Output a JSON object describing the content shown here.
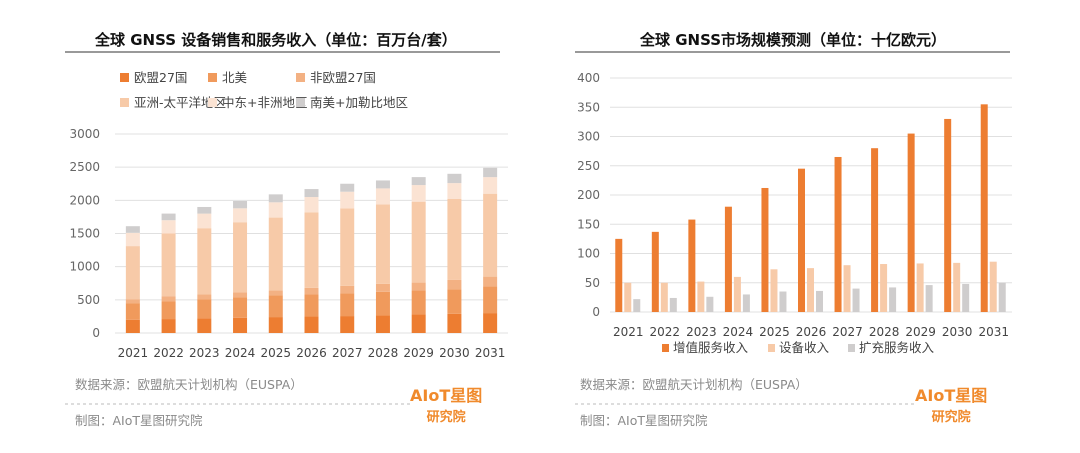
{
  "chart_data": [
    {
      "type": "bar",
      "stacked": true,
      "title": "全球 GNSS 设备销售和服务收入（单位：百万台/套）",
      "categories": [
        "2021",
        "2022",
        "2023",
        "2024",
        "2025",
        "2026",
        "2027",
        "2028",
        "2029",
        "2030",
        "2031"
      ],
      "ylim": [
        0,
        3000
      ],
      "yticks": [
        0,
        500,
        1000,
        1500,
        2000,
        2500,
        3000
      ],
      "grid": true,
      "legend": "top",
      "series": [
        {
          "name": "欧盟27国",
          "color": "#ed7d31",
          "values": [
            200,
            210,
            220,
            230,
            240,
            250,
            255,
            265,
            280,
            290,
            300
          ]
        },
        {
          "name": "北美",
          "color": "#f09a5c",
          "values": [
            250,
            270,
            290,
            310,
            330,
            330,
            345,
            355,
            360,
            370,
            400
          ]
        },
        {
          "name": "非欧盟27国",
          "color": "#f3b183",
          "values": [
            60,
            70,
            70,
            70,
            70,
            100,
            110,
            120,
            120,
            140,
            150
          ]
        },
        {
          "name": "亚洲-太平洋地区",
          "color": "#f7caa8",
          "values": [
            800,
            950,
            1000,
            1060,
            1100,
            1140,
            1170,
            1200,
            1220,
            1220,
            1250
          ]
        },
        {
          "name": "中东+非洲地区",
          "color": "#fbe3d3",
          "values": [
            200,
            200,
            220,
            210,
            230,
            230,
            250,
            240,
            250,
            240,
            250
          ]
        },
        {
          "name": "南美+加勒比地区",
          "color": "#cfcdcd",
          "values": [
            100,
            100,
            100,
            110,
            120,
            120,
            120,
            120,
            120,
            140,
            140
          ]
        }
      ]
    },
    {
      "type": "bar",
      "title": "全球 GNSS市场规模预测（单位：十亿欧元）",
      "categories": [
        "2021",
        "2022",
        "2023",
        "2024",
        "2025",
        "2026",
        "2027",
        "2028",
        "2029",
        "2030",
        "2031"
      ],
      "ylim": [
        0,
        400
      ],
      "yticks": [
        0,
        50,
        100,
        150,
        200,
        250,
        300,
        350,
        400
      ],
      "grid": true,
      "legend": "bottom",
      "series": [
        {
          "name": "增值服务收入",
          "color": "#ed7d31",
          "values": [
            125,
            137,
            158,
            180,
            212,
            245,
            265,
            280,
            305,
            330,
            355
          ]
        },
        {
          "name": "设备收入",
          "color": "#f7caa8",
          "values": [
            50,
            50,
            52,
            60,
            73,
            75,
            80,
            82,
            83,
            84,
            86
          ]
        },
        {
          "name": "扩充服务收入",
          "color": "#cfcdcd",
          "values": [
            22,
            24,
            26,
            30,
            35,
            36,
            40,
            42,
            46,
            48,
            50
          ]
        }
      ]
    }
  ],
  "source": "数据来源：欧盟航天计划机构（EUSPA）",
  "credit": "制图：AIoT星图研究院",
  "logo": {
    "top": "AIoT星图",
    "bottom": "研究院"
  }
}
